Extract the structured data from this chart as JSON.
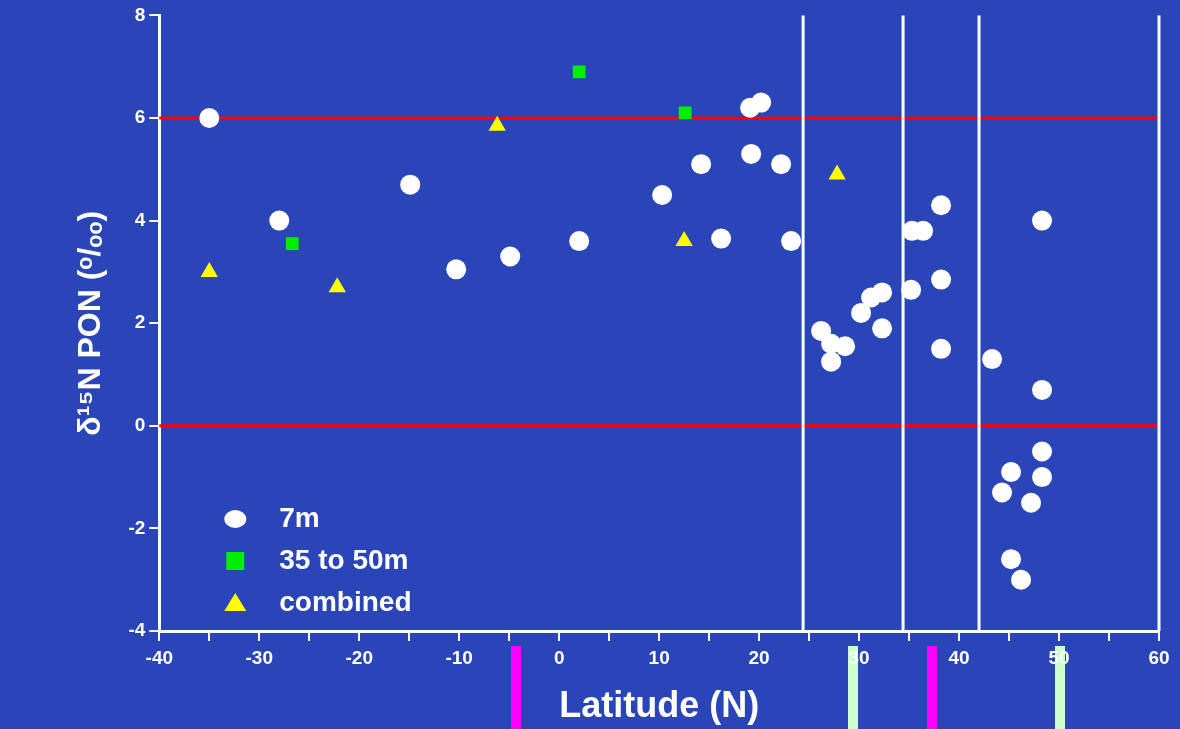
{
  "chart_data": {
    "type": "scatter",
    "xlabel": "Latitude (N)",
    "ylabel": "δ¹⁵N PON (ᵒ/ₒₒ)",
    "xlim": [
      -40,
      60
    ],
    "xticks": [
      -40,
      {
        "value": -35,
        "label": null
      },
      -30,
      {
        "value": -25,
        "label": null
      },
      -20,
      {
        "value": -15,
        "label": null
      },
      -10,
      {
        "value": -5,
        "label": null
      },
      0,
      {
        "value": 5,
        "label": null
      },
      10,
      {
        "value": 15,
        "label": null
      },
      20,
      {
        "value": 25,
        "label": null
      },
      30,
      {
        "value": 35,
        "label": null
      },
      40,
      {
        "value": 45,
        "label": null
      },
      50,
      {
        "value": 55,
        "label": null
      },
      60
    ],
    "ylim": [
      -4,
      8
    ],
    "yticks": [
      -4,
      -2,
      0,
      2,
      4,
      6,
      8
    ],
    "grid": false,
    "legend": "bottom left",
    "series": [
      {
        "name": "7m",
        "color": "#ffffff",
        "marker": "circle",
        "x": [
          -35,
          -28,
          -14.9,
          -10.3,
          -4.9,
          2,
          10.3,
          14.2,
          16.2,
          19.1,
          19.2,
          20.2,
          22.2,
          23.2,
          26.2,
          27.2,
          27.2,
          28.6,
          30.2,
          31.2,
          32.3,
          32.3,
          35.2,
          35.3,
          36.4,
          38.2,
          38.2,
          38.2,
          43.3,
          44.3,
          45.2,
          45.2,
          46.2,
          47.2,
          48.3,
          48.3,
          48.3,
          48.3
        ],
        "values": [
          6.0,
          4.0,
          4.7,
          3.05,
          3.3,
          3.6,
          4.5,
          5.1,
          3.65,
          6.2,
          5.3,
          6.3,
          5.1,
          3.6,
          1.85,
          1.6,
          1.25,
          1.55,
          2.2,
          2.5,
          2.6,
          1.9,
          2.65,
          3.8,
          3.8,
          4.3,
          2.85,
          1.5,
          1.3,
          -1.3,
          -0.9,
          -2.6,
          -3.0,
          -1.5,
          4.0,
          0.7,
          -0.5,
          -1.0
        ]
      },
      {
        "name": "35 to 50m",
        "color": "#00ee00",
        "marker": "square",
        "x": [
          -26.7,
          2,
          12.6
        ],
        "values": [
          3.55,
          6.9,
          6.1
        ]
      },
      {
        "name": "combined",
        "color": "#ffff00",
        "marker": "triangle",
        "x": [
          -35,
          -22.2,
          -6.2,
          12.5,
          27.8
        ],
        "values": [
          3.0,
          2.7,
          5.85,
          3.6,
          4.9
        ]
      }
    ],
    "ref_lines": [
      {
        "axis": "y",
        "value": 6,
        "color": "#ff0000"
      },
      {
        "axis": "y",
        "value": 0,
        "color": "#ff0000"
      },
      {
        "axis": "x",
        "value": 24.4,
        "color": "#ffffff"
      },
      {
        "axis": "x",
        "value": 34.4,
        "color": "#ffffff"
      },
      {
        "axis": "x",
        "value": 42,
        "color": "#ffffff"
      },
      {
        "axis": "x",
        "value": 60,
        "color": "#ffffff"
      }
    ]
  }
}
